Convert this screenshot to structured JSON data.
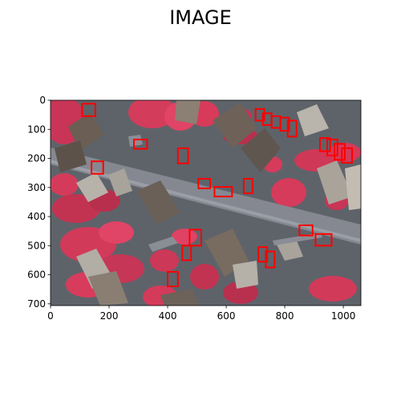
{
  "figure": {
    "title": "IMAGE"
  },
  "axes": {
    "x_ticks": [
      0,
      200,
      400,
      600,
      800,
      1000
    ],
    "y_ticks": [
      0,
      100,
      200,
      300,
      400,
      500,
      600,
      700
    ],
    "x_range": [
      0,
      1060
    ],
    "y_range": [
      0,
      706
    ],
    "y_inverted": true
  },
  "image": {
    "description_hidden": true,
    "style": "false-color infrared aerial photograph",
    "colors": {
      "vegetation": "#d83a5a",
      "vegetation_dark": "#a8284a",
      "road": "#7d8088",
      "roof": "#6e6258",
      "roof_light": "#b9b4ac",
      "ground": "#5a5f66"
    }
  },
  "boxes": {
    "color": "#ff0000",
    "items": [
      {
        "x": 108,
        "y": 12,
        "w": 45,
        "h": 43
      },
      {
        "x": 140,
        "y": 210,
        "w": 40,
        "h": 43
      },
      {
        "x": 285,
        "y": 135,
        "w": 45,
        "h": 32
      },
      {
        "x": 435,
        "y": 165,
        "w": 35,
        "h": 52
      },
      {
        "x": 505,
        "y": 270,
        "w": 40,
        "h": 33
      },
      {
        "x": 560,
        "y": 298,
        "w": 60,
        "h": 33
      },
      {
        "x": 660,
        "y": 270,
        "w": 30,
        "h": 50
      },
      {
        "x": 700,
        "y": 30,
        "w": 30,
        "h": 40
      },
      {
        "x": 725,
        "y": 45,
        "w": 30,
        "h": 40
      },
      {
        "x": 755,
        "y": 55,
        "w": 30,
        "h": 40
      },
      {
        "x": 785,
        "y": 60,
        "w": 30,
        "h": 45
      },
      {
        "x": 810,
        "y": 70,
        "w": 30,
        "h": 55
      },
      {
        "x": 920,
        "y": 130,
        "w": 35,
        "h": 45
      },
      {
        "x": 945,
        "y": 135,
        "w": 35,
        "h": 55
      },
      {
        "x": 970,
        "y": 150,
        "w": 35,
        "h": 55
      },
      {
        "x": 995,
        "y": 165,
        "w": 35,
        "h": 50
      },
      {
        "x": 850,
        "y": 430,
        "w": 45,
        "h": 35
      },
      {
        "x": 905,
        "y": 460,
        "w": 55,
        "h": 40
      },
      {
        "x": 475,
        "y": 445,
        "w": 40,
        "h": 55
      },
      {
        "x": 450,
        "y": 500,
        "w": 30,
        "h": 50
      },
      {
        "x": 710,
        "y": 505,
        "w": 30,
        "h": 50
      },
      {
        "x": 735,
        "y": 520,
        "w": 30,
        "h": 55
      },
      {
        "x": 400,
        "y": 590,
        "w": 35,
        "h": 50
      }
    ]
  }
}
